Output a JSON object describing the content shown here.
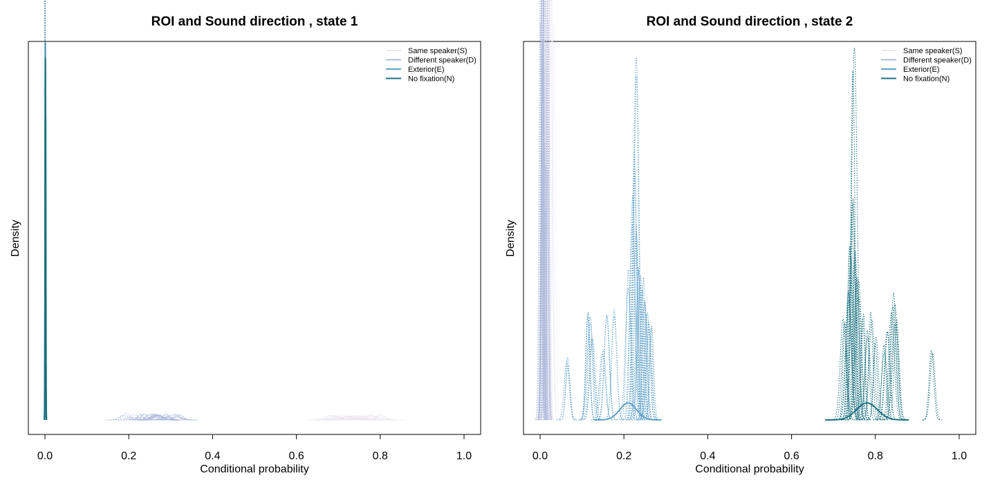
{
  "chart_data": [
    {
      "type": "line",
      "title": "ROI and Sound direction , state 1",
      "xlabel": "Conditional probability",
      "ylabel": "Density",
      "xlim": [
        0,
        1
      ],
      "xticks": [
        "0.0",
        "0.2",
        "0.4",
        "0.6",
        "0.8",
        "1.0"
      ],
      "legend_position": "top-right",
      "series": [
        {
          "name": "Same speaker(S)",
          "color": "#ece6f2",
          "peaks": [
            {
              "center": 0.73,
              "sd": 0.015,
              "height": 0.01
            }
          ],
          "draws": 40,
          "spread": [
            0.67,
            0.81
          ]
        },
        {
          "name": "Different speaker(D)",
          "color": "#b1bddd",
          "peaks": [
            {
              "center": 0.27,
              "sd": 0.012,
              "height": 0.012
            }
          ],
          "draws": 40,
          "spread": [
            0.19,
            0.33
          ]
        },
        {
          "name": "Exterior(E)",
          "color": "#5fa0c9",
          "peaks": [
            {
              "center": 0.001,
              "sd": 0.0008,
              "height": 1.0
            }
          ],
          "draws": 3,
          "spread": [
            0.0,
            0.003
          ]
        },
        {
          "name": "No fixation(N)",
          "color": "#19707f",
          "peaks": [
            {
              "center": 0.001,
              "sd": 0.0007,
              "height": 0.96
            }
          ],
          "draws": 3,
          "spread": [
            0.0,
            0.003
          ]
        }
      ]
    },
    {
      "type": "line",
      "title": "ROI and Sound direction , state 2",
      "xlabel": "Conditional probability",
      "ylabel": "Density",
      "xlim": [
        0,
        1
      ],
      "xticks": [
        "0.0",
        "0.2",
        "0.4",
        "0.6",
        "0.8",
        "1.0"
      ],
      "legend_position": "top-right",
      "series": [
        {
          "name": "Same speaker(S)",
          "color": "#ece6f2",
          "peaks": [
            {
              "center": 0.015,
              "sd": 0.004,
              "height": 0.95
            }
          ],
          "draws": 25,
          "spread": [
            0.0,
            0.035
          ]
        },
        {
          "name": "Different speaker(D)",
          "color": "#b1bddd",
          "peaks": [
            {
              "center": 0.006,
              "sd": 0.003,
              "height": 1.0
            }
          ],
          "draws": 25,
          "spread": [
            0.0,
            0.02
          ]
        },
        {
          "name": "Exterior(E)",
          "color": "#5fa0c9",
          "peaks": [
            {
              "center": 0.21,
              "sd": 0.02,
              "height": 0.045
            }
          ],
          "draws": 40,
          "spread": [
            0.06,
            0.27
          ],
          "draw_peaks": [
            0.065,
            0.115,
            0.12,
            0.125,
            0.15,
            0.16,
            0.175,
            0.21,
            0.22,
            0.225,
            0.228,
            0.23,
            0.235,
            0.24,
            0.245,
            0.25,
            0.255,
            0.26,
            0.265
          ],
          "draw_heights": [
            0.17,
            0.32,
            0.3,
            0.22,
            0.2,
            0.28,
            0.3,
            0.4,
            0.6,
            0.75,
            1.0,
            0.55,
            0.45,
            0.42,
            0.4,
            0.35,
            0.3,
            0.28,
            0.25
          ]
        },
        {
          "name": "No fixation(N)",
          "color": "#19707f",
          "peaks": [
            {
              "center": 0.78,
              "sd": 0.025,
              "height": 0.045
            }
          ],
          "draws": 40,
          "spread": [
            0.7,
            0.95
          ],
          "draw_peaks": [
            0.725,
            0.735,
            0.74,
            0.745,
            0.748,
            0.75,
            0.755,
            0.76,
            0.77,
            0.78,
            0.79,
            0.8,
            0.82,
            0.83,
            0.84,
            0.845,
            0.85,
            0.935
          ],
          "draw_heights": [
            0.28,
            0.35,
            0.5,
            0.62,
            1.0,
            0.45,
            0.42,
            0.38,
            0.3,
            0.25,
            0.3,
            0.22,
            0.2,
            0.25,
            0.32,
            0.36,
            0.28,
            0.2
          ]
        }
      ]
    }
  ]
}
